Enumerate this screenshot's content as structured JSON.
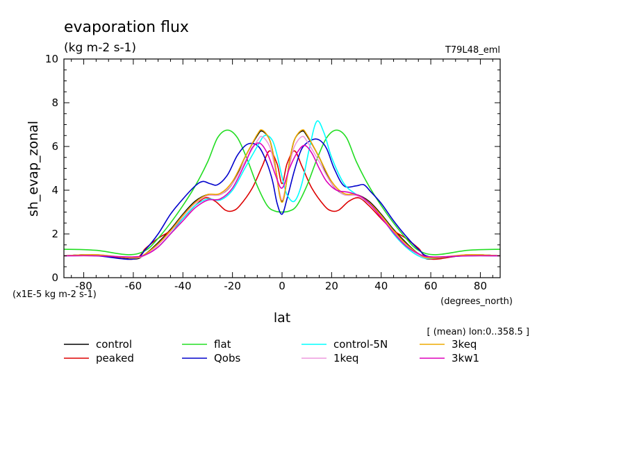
{
  "chart_data": {
    "type": "line",
    "title": "evaporation flux",
    "units": "(kg m-2 s-1)",
    "run_label": "T79L48_eml",
    "ylabel": "sh_evap_zonal",
    "xlabel": "lat",
    "xunits": "(degrees_north)",
    "yscale_note": "(x1E-5 kg m-2 s-1)",
    "averaging_note": "[ (mean) lon:0..358.5 ]",
    "xlim": [
      -88,
      88
    ],
    "ylim": [
      0,
      10
    ],
    "xticks": [
      -80,
      -60,
      -40,
      -20,
      0,
      20,
      40,
      60,
      80
    ],
    "xtick_labels": [
      "-80",
      "-60",
      "-40",
      "-20",
      "0",
      "20",
      "40",
      "60",
      "80"
    ],
    "yticks": [
      0,
      2,
      4,
      6,
      8,
      10
    ],
    "ytick_labels": [
      "0",
      "2",
      "4",
      "6",
      "8",
      "10"
    ],
    "legend_position": "bottom",
    "series": [
      {
        "name": "control",
        "color": "#000000",
        "points": [
          [
            -88,
            1.0
          ],
          [
            -75,
            1.05
          ],
          [
            -60,
            0.85
          ],
          [
            -55,
            1.1
          ],
          [
            -50,
            1.6
          ],
          [
            -45,
            2.2
          ],
          [
            -40,
            2.9
          ],
          [
            -35,
            3.5
          ],
          [
            -30,
            3.8
          ],
          [
            -25,
            3.8
          ],
          [
            -20,
            4.3
          ],
          [
            -15,
            5.5
          ],
          [
            -10,
            6.5
          ],
          [
            -8,
            6.7
          ],
          [
            -5,
            6.3
          ],
          [
            -3,
            5.3
          ],
          [
            -1,
            3.8
          ],
          [
            0,
            3.5
          ],
          [
            1,
            3.8
          ],
          [
            3,
            5.3
          ],
          [
            5,
            6.3
          ],
          [
            8,
            6.7
          ],
          [
            10,
            6.5
          ],
          [
            15,
            5.5
          ],
          [
            20,
            4.3
          ],
          [
            25,
            3.8
          ],
          [
            30,
            3.8
          ],
          [
            35,
            3.5
          ],
          [
            40,
            2.9
          ],
          [
            45,
            2.2
          ],
          [
            50,
            1.6
          ],
          [
            55,
            1.1
          ],
          [
            60,
            0.85
          ],
          [
            75,
            1.05
          ],
          [
            88,
            1.0
          ]
        ]
      },
      {
        "name": "peaked",
        "color": "#dd0000",
        "points": [
          [
            -88,
            1.0
          ],
          [
            -75,
            1.05
          ],
          [
            -60,
            0.85
          ],
          [
            -55,
            1.35
          ],
          [
            -50,
            1.8
          ],
          [
            -45,
            2.15
          ],
          [
            -40,
            2.7
          ],
          [
            -35,
            3.3
          ],
          [
            -31,
            3.65
          ],
          [
            -27,
            3.5
          ],
          [
            -23,
            3.1
          ],
          [
            -20,
            3.05
          ],
          [
            -17,
            3.3
          ],
          [
            -12,
            4.1
          ],
          [
            -8,
            5.1
          ],
          [
            -5,
            5.8
          ],
          [
            -2,
            5.2
          ],
          [
            0,
            4.3
          ],
          [
            2,
            5.2
          ],
          [
            5,
            5.8
          ],
          [
            8,
            5.1
          ],
          [
            12,
            4.1
          ],
          [
            17,
            3.3
          ],
          [
            20,
            3.05
          ],
          [
            23,
            3.1
          ],
          [
            27,
            3.5
          ],
          [
            31,
            3.65
          ],
          [
            35,
            3.3
          ],
          [
            40,
            2.7
          ],
          [
            45,
            2.15
          ],
          [
            50,
            1.8
          ],
          [
            55,
            1.35
          ],
          [
            60,
            0.85
          ],
          [
            75,
            1.05
          ],
          [
            88,
            1.0
          ]
        ]
      },
      {
        "name": "flat",
        "color": "#22dd22",
        "points": [
          [
            -88,
            1.3
          ],
          [
            -75,
            1.25
          ],
          [
            -62,
            1.05
          ],
          [
            -55,
            1.25
          ],
          [
            -50,
            1.8
          ],
          [
            -45,
            2.5
          ],
          [
            -40,
            3.3
          ],
          [
            -35,
            4.2
          ],
          [
            -30,
            5.3
          ],
          [
            -26,
            6.4
          ],
          [
            -22,
            6.75
          ],
          [
            -18,
            6.4
          ],
          [
            -14,
            5.4
          ],
          [
            -10,
            4.2
          ],
          [
            -6,
            3.3
          ],
          [
            -3,
            3.05
          ],
          [
            0,
            3.0
          ],
          [
            3,
            3.05
          ],
          [
            6,
            3.3
          ],
          [
            10,
            4.2
          ],
          [
            14,
            5.4
          ],
          [
            18,
            6.4
          ],
          [
            22,
            6.75
          ],
          [
            26,
            6.4
          ],
          [
            30,
            5.3
          ],
          [
            35,
            4.2
          ],
          [
            40,
            3.3
          ],
          [
            45,
            2.5
          ],
          [
            50,
            1.8
          ],
          [
            55,
            1.25
          ],
          [
            62,
            1.05
          ],
          [
            75,
            1.25
          ],
          [
            88,
            1.3
          ]
        ]
      },
      {
        "name": "Qobs",
        "color": "#0000cc",
        "points": [
          [
            -88,
            1.0
          ],
          [
            -75,
            1.0
          ],
          [
            -60,
            0.85
          ],
          [
            -55,
            1.3
          ],
          [
            -50,
            2.0
          ],
          [
            -45,
            2.9
          ],
          [
            -40,
            3.6
          ],
          [
            -35,
            4.2
          ],
          [
            -32,
            4.4
          ],
          [
            -29,
            4.3
          ],
          [
            -26,
            4.25
          ],
          [
            -22,
            4.7
          ],
          [
            -18,
            5.6
          ],
          [
            -14,
            6.1
          ],
          [
            -10,
            6.05
          ],
          [
            -7,
            5.5
          ],
          [
            -4,
            4.5
          ],
          [
            -2,
            3.4
          ],
          [
            0,
            2.9
          ],
          [
            2,
            3.6
          ],
          [
            5,
            4.9
          ],
          [
            8,
            5.9
          ],
          [
            12,
            6.3
          ],
          [
            15,
            6.3
          ],
          [
            18,
            5.9
          ],
          [
            21,
            5.0
          ],
          [
            25,
            4.2
          ],
          [
            30,
            4.2
          ],
          [
            33,
            4.25
          ],
          [
            36,
            3.9
          ],
          [
            40,
            3.4
          ],
          [
            45,
            2.6
          ],
          [
            50,
            1.9
          ],
          [
            55,
            1.3
          ],
          [
            60,
            0.95
          ],
          [
            75,
            1.0
          ],
          [
            88,
            1.0
          ]
        ]
      },
      {
        "name": "control-5N",
        "color": "#00ffff",
        "points": [
          [
            -88,
            1.0
          ],
          [
            -75,
            1.05
          ],
          [
            -60,
            0.9
          ],
          [
            -55,
            1.05
          ],
          [
            -50,
            1.4
          ],
          [
            -45,
            2.0
          ],
          [
            -40,
            2.7
          ],
          [
            -35,
            3.3
          ],
          [
            -30,
            3.6
          ],
          [
            -25,
            3.55
          ],
          [
            -20,
            4.0
          ],
          [
            -15,
            5.0
          ],
          [
            -10,
            6.0
          ],
          [
            -7,
            6.5
          ],
          [
            -4,
            6.3
          ],
          [
            -2,
            5.6
          ],
          [
            0,
            4.6
          ],
          [
            2,
            3.8
          ],
          [
            5,
            3.5
          ],
          [
            8,
            4.3
          ],
          [
            11,
            5.9
          ],
          [
            14,
            7.15
          ],
          [
            17,
            6.6
          ],
          [
            20,
            5.5
          ],
          [
            25,
            4.3
          ],
          [
            30,
            3.8
          ],
          [
            35,
            3.4
          ],
          [
            40,
            2.8
          ],
          [
            45,
            2.0
          ],
          [
            50,
            1.4
          ],
          [
            55,
            1.0
          ],
          [
            60,
            0.88
          ],
          [
            75,
            1.05
          ],
          [
            88,
            1.0
          ]
        ]
      },
      {
        "name": "1keq",
        "color": "#ee99dd",
        "points": [
          [
            -88,
            1.0
          ],
          [
            -75,
            1.05
          ],
          [
            -60,
            0.9
          ],
          [
            -55,
            1.05
          ],
          [
            -50,
            1.5
          ],
          [
            -45,
            2.1
          ],
          [
            -40,
            2.8
          ],
          [
            -35,
            3.4
          ],
          [
            -30,
            3.75
          ],
          [
            -25,
            3.8
          ],
          [
            -20,
            4.3
          ],
          [
            -15,
            5.3
          ],
          [
            -10,
            6.25
          ],
          [
            -8,
            6.45
          ],
          [
            -5,
            6.0
          ],
          [
            -3,
            5.1
          ],
          [
            -1,
            3.9
          ],
          [
            0,
            3.55
          ],
          [
            1,
            3.9
          ],
          [
            3,
            5.1
          ],
          [
            5,
            6.0
          ],
          [
            8,
            6.45
          ],
          [
            10,
            6.25
          ],
          [
            15,
            5.3
          ],
          [
            20,
            4.3
          ],
          [
            25,
            3.8
          ],
          [
            30,
            3.75
          ],
          [
            35,
            3.4
          ],
          [
            40,
            2.8
          ],
          [
            45,
            2.1
          ],
          [
            50,
            1.5
          ],
          [
            55,
            1.05
          ],
          [
            60,
            0.9
          ],
          [
            75,
            1.05
          ],
          [
            88,
            1.0
          ]
        ]
      },
      {
        "name": "3keq",
        "color": "#eeaa00",
        "points": [
          [
            -88,
            1.0
          ],
          [
            -75,
            1.05
          ],
          [
            -60,
            0.9
          ],
          [
            -55,
            1.1
          ],
          [
            -50,
            1.55
          ],
          [
            -45,
            2.15
          ],
          [
            -40,
            2.85
          ],
          [
            -35,
            3.45
          ],
          [
            -30,
            3.8
          ],
          [
            -25,
            3.85
          ],
          [
            -20,
            4.4
          ],
          [
            -15,
            5.5
          ],
          [
            -10,
            6.55
          ],
          [
            -8,
            6.75
          ],
          [
            -5,
            6.3
          ],
          [
            -3,
            5.3
          ],
          [
            -1,
            3.8
          ],
          [
            0,
            3.45
          ],
          [
            1,
            3.8
          ],
          [
            3,
            5.3
          ],
          [
            5,
            6.3
          ],
          [
            8,
            6.75
          ],
          [
            10,
            6.55
          ],
          [
            15,
            5.5
          ],
          [
            20,
            4.4
          ],
          [
            25,
            3.85
          ],
          [
            30,
            3.8
          ],
          [
            35,
            3.45
          ],
          [
            40,
            2.85
          ],
          [
            45,
            2.15
          ],
          [
            50,
            1.55
          ],
          [
            55,
            1.1
          ],
          [
            60,
            0.9
          ],
          [
            75,
            1.05
          ],
          [
            88,
            1.0
          ]
        ]
      },
      {
        "name": "3kw1",
        "color": "#dd00bb",
        "points": [
          [
            -88,
            1.0
          ],
          [
            -75,
            1.0
          ],
          [
            -60,
            0.95
          ],
          [
            -55,
            1.05
          ],
          [
            -50,
            1.4
          ],
          [
            -45,
            2.0
          ],
          [
            -40,
            2.6
          ],
          [
            -35,
            3.2
          ],
          [
            -30,
            3.55
          ],
          [
            -25,
            3.6
          ],
          [
            -20,
            4.1
          ],
          [
            -15,
            5.2
          ],
          [
            -12,
            5.95
          ],
          [
            -9,
            6.15
          ],
          [
            -6,
            5.7
          ],
          [
            -3,
            4.8
          ],
          [
            -1,
            4.2
          ],
          [
            0,
            4.1
          ],
          [
            1,
            4.3
          ],
          [
            3,
            5.0
          ],
          [
            6,
            5.7
          ],
          [
            9,
            6.05
          ],
          [
            12,
            5.7
          ],
          [
            15,
            5.0
          ],
          [
            18,
            4.4
          ],
          [
            22,
            4.0
          ],
          [
            27,
            3.9
          ],
          [
            32,
            3.7
          ],
          [
            36,
            3.3
          ],
          [
            40,
            2.75
          ],
          [
            45,
            2.05
          ],
          [
            50,
            1.45
          ],
          [
            55,
            1.1
          ],
          [
            60,
            0.95
          ],
          [
            75,
            1.0
          ],
          [
            88,
            1.0
          ]
        ]
      }
    ]
  }
}
